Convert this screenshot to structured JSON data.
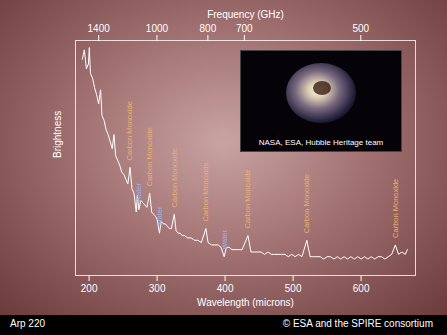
{
  "chart_data": {
    "type": "line",
    "x_label": "Wavelength (microns)",
    "x2_label": "Frequency (GHz)",
    "y_label": "Brightness",
    "caption": "Arp 220",
    "credit": "© ESA and the SPIRE consortium",
    "inset_credit": "NASA, ESA, Hubble Heritage team",
    "xlim": [
      180,
      680
    ],
    "xticks": [
      200,
      300,
      400,
      500,
      600
    ],
    "x2ticks": [
      {
        "value": 214.1,
        "label": "1400"
      },
      {
        "value": 299.8,
        "label": "1000"
      },
      {
        "value": 374.7,
        "label": "800"
      },
      {
        "value": 428.3,
        "label": "700"
      },
      {
        "value": 599.6,
        "label": "500"
      }
    ],
    "ylim": [
      0,
      100
    ],
    "tick_labels": "x",
    "color": "#ffffff",
    "x": [
      190,
      193,
      196,
      199,
      200.3,
      202,
      205,
      208,
      211,
      214,
      216.9,
      219,
      222,
      225,
      228,
      231,
      234,
      236.6,
      239,
      242,
      245,
      248,
      251,
      254,
      257,
      260.2,
      263,
      266,
      269.3,
      271,
      273.2,
      276,
      279,
      282,
      285,
      289.1,
      292,
      295,
      298,
      300,
      303.5,
      306,
      309,
      312,
      315,
      318,
      321,
      325.2,
      328,
      331,
      334,
      337,
      340,
      345,
      350,
      355,
      360,
      365,
      371.7,
      375,
      380,
      385,
      390,
      394,
      398.6,
      402,
      406,
      410,
      415,
      420,
      425,
      433.6,
      438,
      443,
      448,
      453,
      458,
      463,
      468,
      473,
      478,
      483,
      488,
      493,
      498,
      503,
      508,
      513,
      520.2,
      525,
      530,
      535,
      540,
      545,
      550,
      555,
      560,
      565,
      570,
      575,
      580,
      585,
      590,
      595,
      600,
      605,
      610,
      615,
      620,
      625,
      630,
      635,
      640,
      645,
      650.3,
      655,
      660,
      665,
      668
    ],
    "values": [
      92,
      96,
      88,
      90,
      97,
      86,
      84,
      80,
      77,
      73,
      79,
      68,
      66,
      62,
      60,
      57,
      54,
      60,
      51,
      49,
      47,
      44,
      43,
      41,
      39,
      46,
      37,
      35,
      27,
      34,
      28,
      32,
      31,
      30,
      29,
      35,
      27,
      26,
      25,
      24,
      18,
      23,
      22,
      22,
      21,
      20,
      20,
      26,
      19,
      18,
      18,
      17,
      17,
      16,
      16,
      15,
      15,
      14,
      20,
      14,
      13,
      13,
      13,
      12,
      8,
      12,
      12,
      11,
      11,
      11,
      11,
      17,
      10,
      10,
      10,
      10,
      9,
      10,
      9,
      9,
      9,
      9,
      9,
      8,
      9,
      8,
      9,
      8,
      15,
      8,
      8,
      8,
      8,
      7,
      8,
      8,
      7,
      8,
      7,
      8,
      7,
      8,
      7,
      8,
      7,
      8,
      7,
      8,
      7,
      8,
      8,
      7,
      8,
      9,
      13,
      9,
      10,
      9,
      11
    ],
    "annotations": [
      {
        "x": 260.2,
        "text": "Carbon Monoxide",
        "color": "#e8b070"
      },
      {
        "x": 273.2,
        "text": "Water",
        "color": "#9fb4ea"
      },
      {
        "x": 289.1,
        "text": "Carbon Monoxide",
        "color": "#e8b070"
      },
      {
        "x": 303.5,
        "text": "Water",
        "color": "#9fb4ea"
      },
      {
        "x": 325.2,
        "text": "Carbon Monoxide",
        "color": "#e8b070"
      },
      {
        "x": 371.7,
        "text": "Carbon Monoxide",
        "color": "#e8b070"
      },
      {
        "x": 398.6,
        "text": "Water",
        "color": "#9fb4ea"
      },
      {
        "x": 433.6,
        "text": "Carbon Monoxide",
        "color": "#e8b070"
      },
      {
        "x": 520.2,
        "text": "Carbon Monoxide",
        "color": "#e8b070"
      },
      {
        "x": 650.3,
        "text": "Carbon Monoxide",
        "color": "#e8b070"
      }
    ]
  }
}
